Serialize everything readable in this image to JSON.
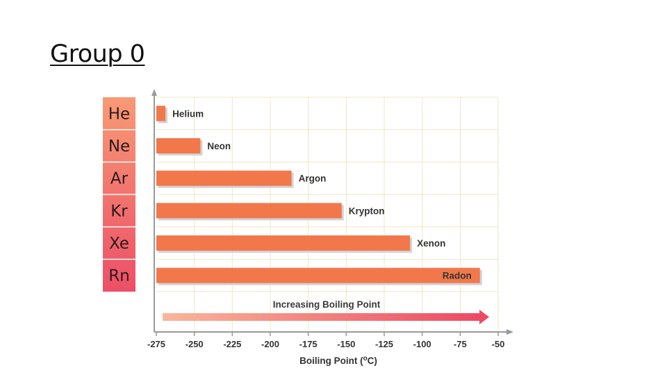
{
  "slide": {
    "title": "Group 0"
  },
  "chart_data": {
    "type": "bar",
    "orientation": "horizontal",
    "categories": [
      "He",
      "Ne",
      "Ar",
      "Kr",
      "Xe",
      "Rn"
    ],
    "series": [
      {
        "values": [
          -269,
          -246,
          -186,
          -153,
          -108,
          -62
        ]
      }
    ],
    "bar_labels": [
      "Helium",
      "Neon",
      "Argon",
      "Krypton",
      "Xenon",
      "Radon"
    ],
    "xlabel_text": "Boiling Point (",
    "xlabel_sup": "o",
    "xlabel_unit": "C)",
    "ylabel": "",
    "xlim": [
      -275,
      -50
    ],
    "xticks": [
      -275,
      -250,
      -225,
      -200,
      -175,
      -150,
      -125,
      -100,
      -75,
      -50
    ],
    "grid": true,
    "annotation": "Increasing Boiling Point",
    "colors": {
      "bar": "#f2784b",
      "bar_shadow": "#d3d3d3",
      "symbol_column_top": "#f89a75",
      "symbol_column_bottom": "#ec4f68",
      "arrow_start": "#f8b79a",
      "arrow_end": "#ec4a64",
      "grid": "#ede7c6",
      "axis": "#999999"
    }
  }
}
